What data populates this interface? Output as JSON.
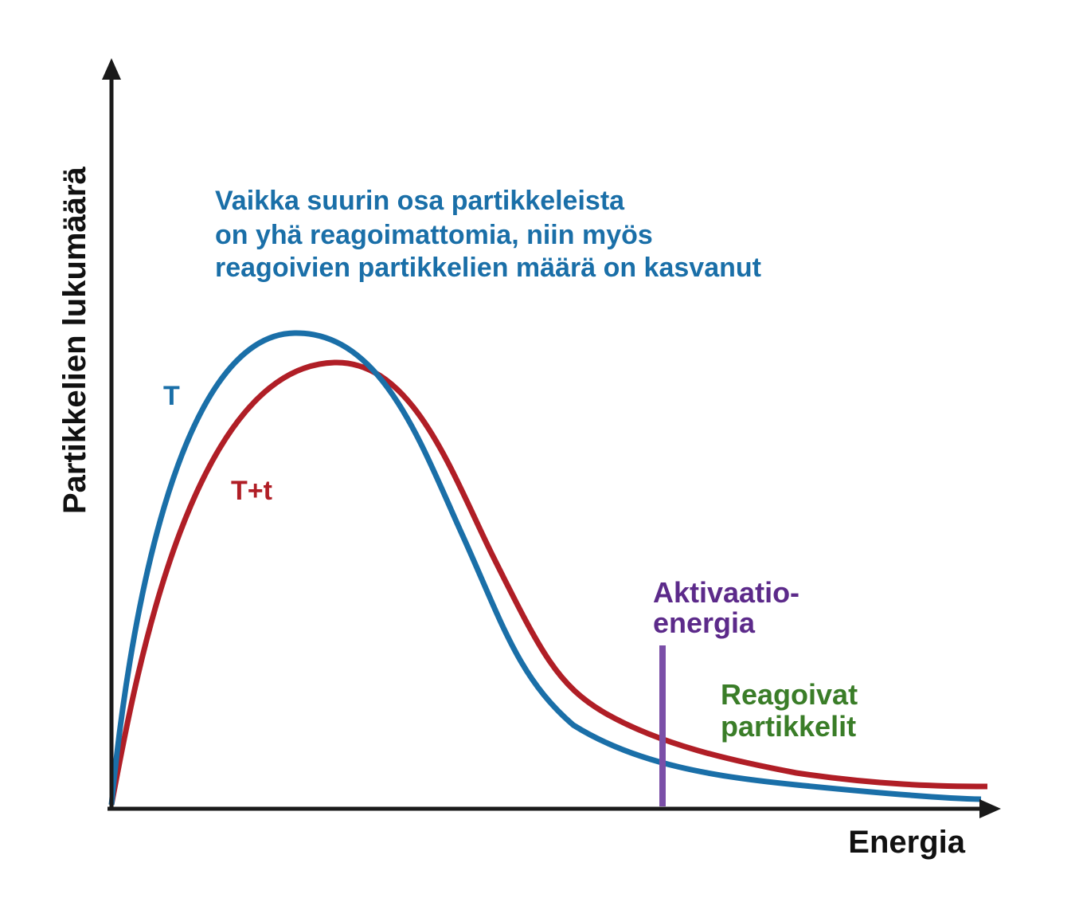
{
  "y_axis_label": "Partikkelien lukumäärä",
  "x_axis_label": "Energia",
  "annotation": [
    "Vaikka suurin osa partikkeleista",
    "on yhä reagoimattomia, niin myös",
    "reagoivien partikkelien määrä on kasvanut"
  ],
  "curves": [
    {
      "label": "T"
    },
    {
      "label": "T+t"
    }
  ],
  "activation_label": [
    "Aktivaatio-",
    "energia"
  ],
  "reacting_label": [
    "Reagoivat",
    "partikkelit"
  ]
}
